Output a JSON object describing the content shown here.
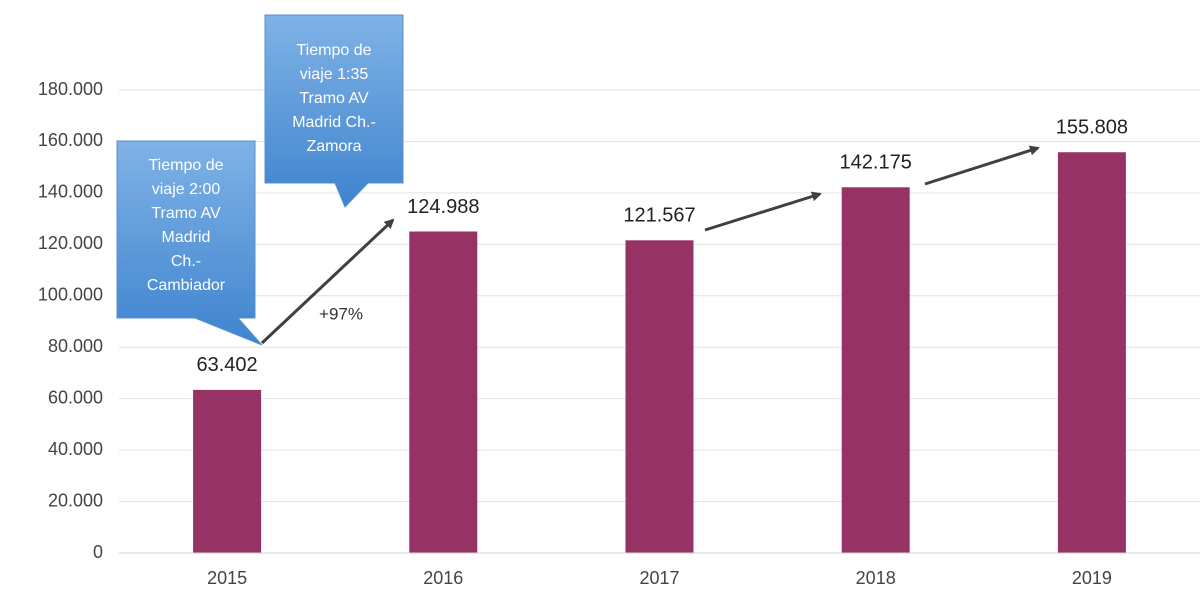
{
  "chart_data": {
    "type": "bar",
    "categories": [
      "2015",
      "2016",
      "2017",
      "2018",
      "2019"
    ],
    "values": [
      63402,
      124988,
      121567,
      142175,
      155808
    ],
    "value_labels": [
      "63.402",
      "124.988",
      "121.567",
      "142.175",
      "155.808"
    ],
    "color": "#963264",
    "ylim": [
      0,
      180000
    ],
    "yticks": [
      0,
      {
        "value": 20000,
        "label": "20.000"
      },
      {
        "value": 40000,
        "label": "40.000"
      },
      {
        "value": 60000,
        "label": "60.000"
      },
      {
        "value": 80000,
        "label": "80.000"
      },
      {
        "value": 100000,
        "label": "100.000"
      },
      {
        "value": 120000,
        "label": "120.000"
      },
      {
        "value": 140000,
        "label": "140.000"
      },
      {
        "value": 160000,
        "label": "160.000"
      },
      {
        "value": 180000,
        "label": "180.000"
      }
    ],
    "grid": true,
    "annotations": [
      {
        "lines": [
          "Tiempo de",
          "viaje 2:00",
          "Tramo AV",
          "Madrid",
          "Ch.-",
          "Cambiador"
        ]
      },
      {
        "lines": [
          "Tiempo de",
          "viaje 1:35",
          "Tramo AV",
          "Madrid Ch.-",
          "Zamora"
        ]
      },
      {
        "text": "+97%"
      }
    ]
  }
}
